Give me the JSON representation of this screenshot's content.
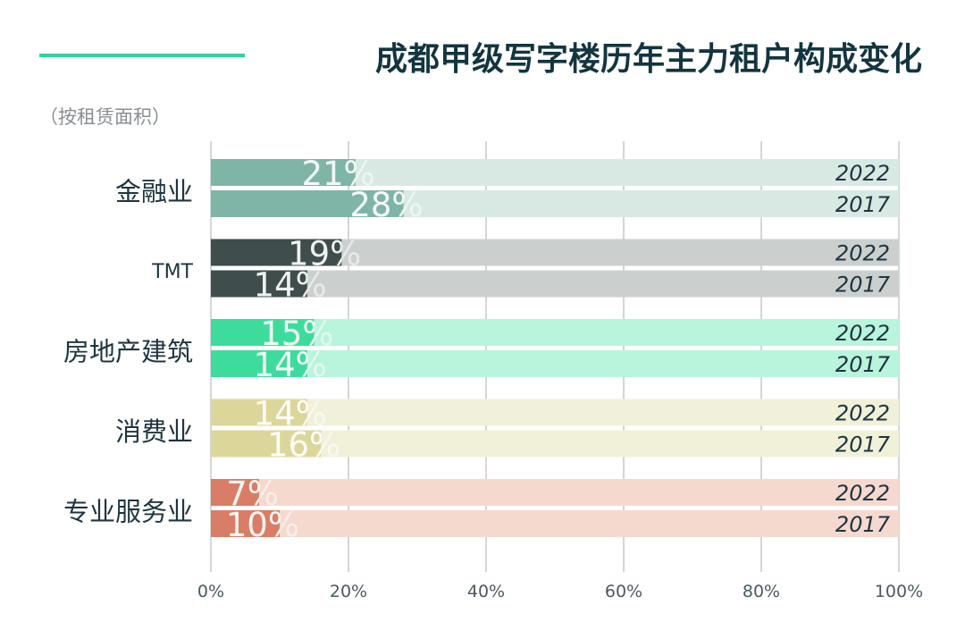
{
  "header": {
    "title": "成都甲级写字楼历年主力租户构成变化",
    "subtitle": "（按租赁面积）",
    "accent_color": "#2fd49a"
  },
  "chart_data": {
    "type": "bar",
    "orientation": "horizontal",
    "title": "成都甲级写字楼历年主力租户构成变化",
    "subtitle": "（按租赁面积）",
    "categories": [
      "金融业",
      "TMT",
      "房地产建筑",
      "消费业",
      "专业服务业"
    ],
    "series": [
      {
        "name": "2022",
        "values": [
          21,
          19,
          15,
          14,
          7
        ]
      },
      {
        "name": "2017",
        "values": [
          28,
          14,
          14,
          16,
          10
        ]
      }
    ],
    "value_labels": {
      "2022": [
        "21%",
        "19%",
        "15%",
        "14%",
        "7%"
      ],
      "2017": [
        "28%",
        "14%",
        "14%",
        "16%",
        "10%"
      ]
    },
    "xlim": [
      0,
      100
    ],
    "xticks": [
      "0%",
      "20%",
      "40%",
      "60%",
      "80%",
      "100%"
    ],
    "xlabel": "",
    "ylabel": "",
    "grid": true,
    "colors": {
      "fill": [
        "#7fb5a6",
        "#3f4e4c",
        "#3edc9c",
        "#dcd69a",
        "#d97d66"
      ],
      "track": [
        "#d8e9e4",
        "#cbd0cf",
        "#b9f4dc",
        "#f1f0d9",
        "#f5d9cf"
      ]
    }
  }
}
